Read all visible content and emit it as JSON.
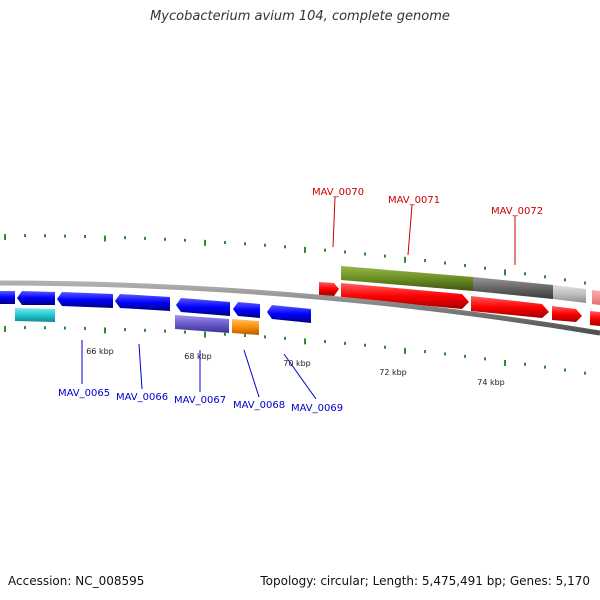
{
  "title": "Mycobacterium avium 104, complete genome",
  "footer": {
    "accession": "Accession: NC_008595",
    "topology": "Topology: circular",
    "length": "Length: 5,475,491 bp",
    "genes": "Genes: 5,170"
  },
  "scale_labels": [
    "66 kbp",
    "68 kbp",
    "70 kbp",
    "72 kbp",
    "74 kbp"
  ],
  "gene_labels_forward": [
    "MAV_0070",
    "MAV_0071",
    "MAV_0072"
  ],
  "gene_labels_reverse": [
    "MAV_0065",
    "MAV_0066",
    "MAV_0067",
    "MAV_0068",
    "MAV_0069"
  ],
  "colors": {
    "forward_gene": "#ff0000",
    "reverse_gene": "#0000ff",
    "backbone": "#808080",
    "tick": "#2e8b2e",
    "forward_label": "#cc0000",
    "reverse_label": "#0000cc",
    "olive_feature": "#6b8e23",
    "grey_feature": "#666666",
    "light_grey_feature": "#c0c0c0",
    "cyan_feature": "#20c8d0",
    "purple_feature": "#6a5acd",
    "orange_feature": "#ff8c00"
  }
}
